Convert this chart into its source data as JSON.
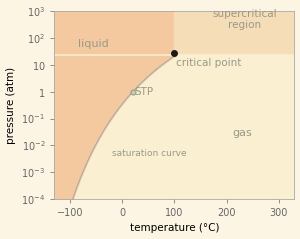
{
  "title": "",
  "xlabel": "temperature (°C)",
  "ylabel": "pressure (atm)",
  "xlim": [
    -130,
    330
  ],
  "ylim_log": [
    -4,
    3
  ],
  "background_color": "#fdf5e4",
  "liquid_color": "#f5c9a0",
  "gas_color": "#faefd0",
  "supercritical_color": "#f5ddb8",
  "curve_color": "#aaaaaa",
  "label_color": "#999988",
  "critical_T": 100,
  "critical_P": 27,
  "stp_T": 20,
  "stp_P": 1,
  "critical_label": "critical point",
  "stp_label": "STP",
  "liquid_label": "liquid",
  "gas_label": "gas",
  "saturation_label": "saturation curve",
  "supercritical_label": "supercritical\nregion",
  "label_fontsize": 7.5,
  "tick_fontsize": 7
}
